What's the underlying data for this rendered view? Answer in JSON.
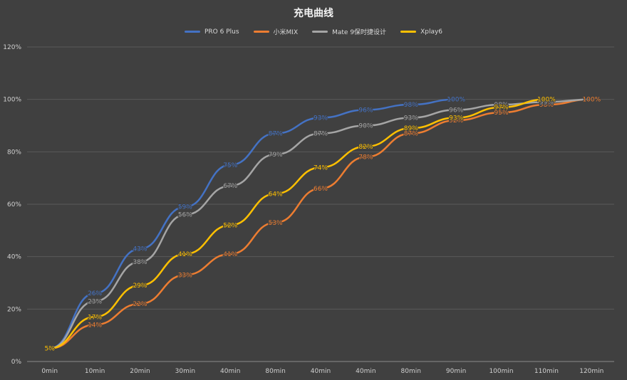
{
  "chart_data": {
    "type": "line",
    "title": "充电曲线",
    "categories": [
      "0min",
      "10min",
      "20min",
      "30min",
      "40min",
      "80min",
      "40min",
      "40min",
      "80min",
      "90min",
      "100min",
      "110min",
      "120min"
    ],
    "ylim": [
      0,
      120
    ],
    "yticks": [
      "0%",
      "20%",
      "40%",
      "60%",
      "80%",
      "100%",
      "120%"
    ],
    "grid": true,
    "legend": "top",
    "series": [
      {
        "name": "PRO 6 Plus",
        "color": "#4472c4",
        "values": [
          5,
          26,
          43,
          59,
          75,
          87,
          93,
          96,
          98,
          100,
          null,
          null,
          null
        ],
        "labels": [
          "",
          "26%",
          "43%",
          "59%",
          "75%",
          "87%",
          "93%",
          "96%",
          "98%",
          "100%",
          "",
          "",
          ""
        ]
      },
      {
        "name": "小米MIX",
        "color": "#ed7d31",
        "values": [
          5,
          14,
          22,
          33,
          41,
          53,
          66,
          78,
          87,
          92,
          95,
          98,
          100
        ],
        "labels": [
          "",
          "14%",
          "22%",
          "33%",
          "41%",
          "53%",
          "66%",
          "78%",
          "87%",
          "92%",
          "95%",
          "98%",
          "100%"
        ]
      },
      {
        "name": "Mate 9保时捷设计",
        "color": "#a5a5a5",
        "values": [
          5,
          23,
          38,
          56,
          67,
          79,
          87,
          90,
          93,
          96,
          98,
          99,
          100
        ],
        "labels": [
          "",
          "23%",
          "38%",
          "56%",
          "67%",
          "79%",
          "87%",
          "90%",
          "93%",
          "96%",
          "98%",
          "99%",
          ""
        ]
      },
      {
        "name": "Xplay6",
        "color": "#ffc000",
        "values": [
          5,
          17,
          29,
          41,
          52,
          64,
          74,
          82,
          89,
          93,
          97,
          100,
          null
        ],
        "labels": [
          "5%",
          "17%",
          "29%",
          "41%",
          "52%",
          "64%",
          "74%",
          "82%",
          "89%",
          "93%",
          "97%",
          "100%",
          ""
        ]
      }
    ]
  }
}
